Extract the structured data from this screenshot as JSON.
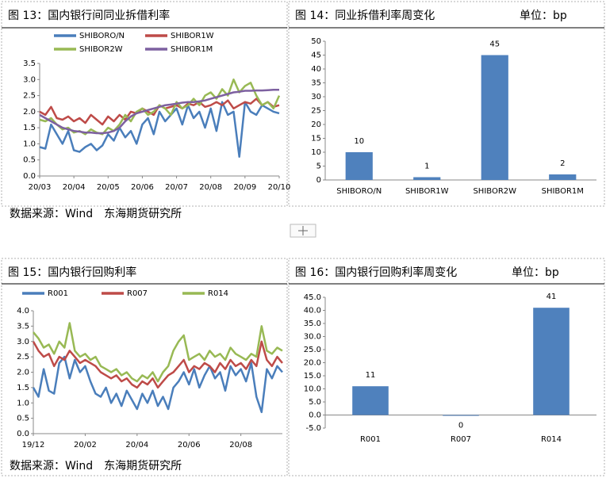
{
  "chart_data": [
    {
      "type": "line",
      "title": "图 13：国内银行间同业拆借利率",
      "categories": [
        "20/03",
        null,
        null,
        null,
        null,
        null,
        "20/04",
        null,
        null,
        null,
        null,
        null,
        "20/05",
        null,
        null,
        null,
        null,
        null,
        "20/06",
        null,
        null,
        null,
        null,
        null,
        "20/07",
        null,
        null,
        null,
        null,
        null,
        "20/08",
        null,
        null,
        null,
        null,
        null,
        "20/09",
        null,
        null,
        null,
        null,
        null,
        "20/10"
      ],
      "series": [
        {
          "name": "SHIBORO/N",
          "color": "#4a7ebb",
          "values": [
            0.9,
            0.85,
            1.6,
            1.3,
            1.0,
            1.4,
            0.8,
            0.75,
            0.9,
            1.0,
            0.8,
            0.95,
            1.3,
            1.1,
            1.5,
            1.2,
            1.4,
            1.0,
            1.6,
            1.8,
            1.3,
            2.0,
            1.7,
            1.9,
            2.1,
            1.6,
            2.2,
            1.8,
            2.0,
            1.5,
            2.1,
            1.4,
            2.3,
            1.9,
            2.0,
            0.6,
            2.3,
            2.0,
            1.9,
            2.2,
            2.1,
            2.0,
            1.95
          ]
        },
        {
          "name": "SHIBOR1W",
          "color": "#be4b48",
          "values": [
            2.0,
            1.9,
            2.15,
            1.8,
            1.75,
            1.85,
            1.7,
            1.8,
            1.65,
            1.9,
            1.75,
            1.6,
            1.85,
            1.7,
            1.9,
            1.75,
            2.0,
            1.95,
            2.1,
            2.0,
            1.9,
            2.2,
            2.1,
            2.15,
            2.2,
            2.1,
            2.25,
            2.2,
            2.3,
            2.15,
            2.2,
            2.3,
            2.2,
            2.35,
            2.1,
            2.2,
            2.3,
            2.25,
            2.4,
            2.2,
            2.3,
            2.15,
            2.2
          ]
        },
        {
          "name": "SHIBOR2W",
          "color": "#98b954",
          "values": [
            1.75,
            1.7,
            1.8,
            1.6,
            1.45,
            1.5,
            1.35,
            1.4,
            1.3,
            1.45,
            1.35,
            1.3,
            1.5,
            1.4,
            1.6,
            1.9,
            1.7,
            2.0,
            2.1,
            1.9,
            2.0,
            2.2,
            2.1,
            1.9,
            2.3,
            2.1,
            2.2,
            2.4,
            2.2,
            2.5,
            2.6,
            2.4,
            2.7,
            2.5,
            3.0,
            2.6,
            2.8,
            2.9,
            2.5,
            2.2,
            2.3,
            2.1,
            2.5
          ]
        },
        {
          "name": "SHIBOR1M",
          "color": "#7d60a0",
          "values": [
            1.9,
            1.8,
            1.7,
            1.6,
            1.5,
            1.45,
            1.4,
            1.38,
            1.35,
            1.35,
            1.33,
            1.33,
            1.35,
            1.4,
            1.5,
            1.7,
            1.85,
            1.95,
            2.0,
            2.05,
            2.1,
            2.15,
            2.2,
            2.22,
            2.25,
            2.28,
            2.3,
            2.3,
            2.32,
            2.35,
            2.4,
            2.45,
            2.5,
            2.55,
            2.6,
            2.62,
            2.65,
            2.65,
            2.66,
            2.66,
            2.67,
            2.68,
            2.68
          ]
        }
      ],
      "ylim": [
        0,
        3.5
      ],
      "yticks": [
        {
          "value": 0,
          "label": "0.0"
        },
        0.5,
        {
          "value": 1,
          "label": "1.0"
        },
        1.5,
        {
          "value": 2,
          "label": "2.0"
        },
        2.5,
        {
          "value": 3,
          "label": "3.0"
        },
        3.5
      ],
      "grid": false
    },
    {
      "type": "bar",
      "title": "图 14：同业拆借利率周变化",
      "unit": "单位：bp",
      "categories": [
        "SHIBORO/N",
        "SHIBOR1W",
        "SHIBOR2W",
        "SHIBOR1M"
      ],
      "values": [
        10,
        1,
        45,
        2
      ],
      "color": "#4f81bd",
      "ylim": [
        0,
        50
      ],
      "yticks": [
        0,
        5,
        10,
        15,
        20,
        25,
        30,
        35,
        40,
        45,
        50
      ],
      "grid": false
    },
    {
      "type": "line",
      "title": "图 15：国内银行回购利率",
      "categories": [
        "19/12",
        null,
        null,
        null,
        null,
        null,
        null,
        null,
        null,
        null,
        "20/02",
        null,
        null,
        null,
        null,
        null,
        null,
        null,
        null,
        null,
        "20/04",
        null,
        null,
        null,
        null,
        null,
        null,
        null,
        null,
        null,
        "20/06",
        null,
        null,
        null,
        null,
        null,
        null,
        null,
        null,
        null,
        "20/08",
        null,
        null,
        null,
        null,
        null,
        null,
        null,
        null
      ],
      "series": [
        {
          "name": "R001",
          "color": "#4a7ebb",
          "values": [
            1.5,
            1.2,
            2.1,
            1.4,
            1.3,
            2.3,
            2.5,
            1.8,
            2.4,
            2.0,
            2.2,
            1.7,
            1.3,
            1.2,
            1.5,
            1.0,
            1.3,
            0.9,
            1.4,
            1.1,
            0.8,
            1.3,
            1.0,
            1.4,
            0.9,
            1.2,
            0.8,
            1.5,
            1.7,
            2.0,
            1.6,
            2.1,
            1.5,
            1.9,
            2.2,
            1.8,
            2.0,
            1.4,
            2.2,
            1.9,
            2.1,
            1.7,
            2.3,
            1.2,
            0.7,
            2.1,
            1.8,
            2.2,
            2.0
          ]
        },
        {
          "name": "R007",
          "color": "#be4b48",
          "values": [
            3.0,
            2.7,
            2.5,
            2.6,
            2.2,
            2.5,
            2.4,
            2.7,
            2.5,
            2.3,
            2.4,
            2.3,
            2.2,
            2.0,
            1.9,
            1.8,
            1.9,
            1.7,
            1.8,
            1.6,
            1.5,
            1.7,
            1.6,
            1.8,
            1.5,
            1.7,
            1.9,
            2.0,
            2.2,
            2.4,
            2.0,
            2.2,
            2.1,
            2.3,
            2.2,
            2.0,
            2.3,
            2.1,
            2.4,
            2.2,
            2.3,
            2.1,
            2.4,
            2.2,
            3.0,
            2.4,
            2.2,
            2.5,
            2.3
          ]
        },
        {
          "name": "R014",
          "color": "#98b954",
          "values": [
            3.3,
            3.1,
            2.8,
            2.9,
            2.6,
            3.0,
            2.8,
            3.6,
            2.7,
            2.5,
            2.6,
            2.4,
            2.5,
            2.2,
            2.1,
            2.0,
            2.1,
            1.9,
            2.0,
            1.8,
            1.7,
            1.9,
            1.8,
            2.0,
            1.7,
            2.0,
            2.2,
            2.7,
            3.0,
            3.2,
            2.4,
            2.5,
            2.6,
            2.4,
            2.7,
            2.5,
            2.6,
            2.4,
            2.8,
            2.6,
            2.5,
            2.4,
            2.6,
            2.5,
            3.5,
            2.7,
            2.6,
            2.8,
            2.7
          ]
        }
      ],
      "ylim": [
        0,
        4
      ],
      "yticks": [
        {
          "value": 0,
          "label": "0.0"
        },
        0.5,
        {
          "value": 1,
          "label": "1.0"
        },
        1.5,
        {
          "value": 2,
          "label": "2.0"
        },
        2.5,
        {
          "value": 3,
          "label": "3.0"
        },
        3.5,
        {
          "value": 4,
          "label": "4.0"
        }
      ],
      "grid": false
    },
    {
      "type": "bar",
      "title": "图 16：国内银行回购利率周变化",
      "unit": "单位：bp",
      "categories": [
        "R001",
        "R007",
        "R014"
      ],
      "values": [
        11,
        -0.3,
        41
      ],
      "value_labels": [
        "11",
        "0",
        "41"
      ],
      "color": "#4f81bd",
      "ylim": [
        -5,
        45
      ],
      "yticks": [
        {
          "value": -5,
          "label": "-5.0"
        },
        {
          "value": 0,
          "label": "0.0"
        },
        {
          "value": 5,
          "label": "5.0"
        },
        {
          "value": 10,
          "label": "10.0"
        },
        {
          "value": 15,
          "label": "15.0"
        },
        {
          "value": 20,
          "label": "20.0"
        },
        {
          "value": 25,
          "label": "25.0"
        },
        {
          "value": 30,
          "label": "30.0"
        },
        {
          "value": 35,
          "label": "35.0"
        },
        {
          "value": 40,
          "label": "40.0"
        },
        {
          "value": 45,
          "label": "45.0"
        }
      ],
      "grid": false
    }
  ],
  "sources": [
    "数据来源：Wind　东海期货研究所",
    "数据来源：Wind　东海期货研究所"
  ]
}
